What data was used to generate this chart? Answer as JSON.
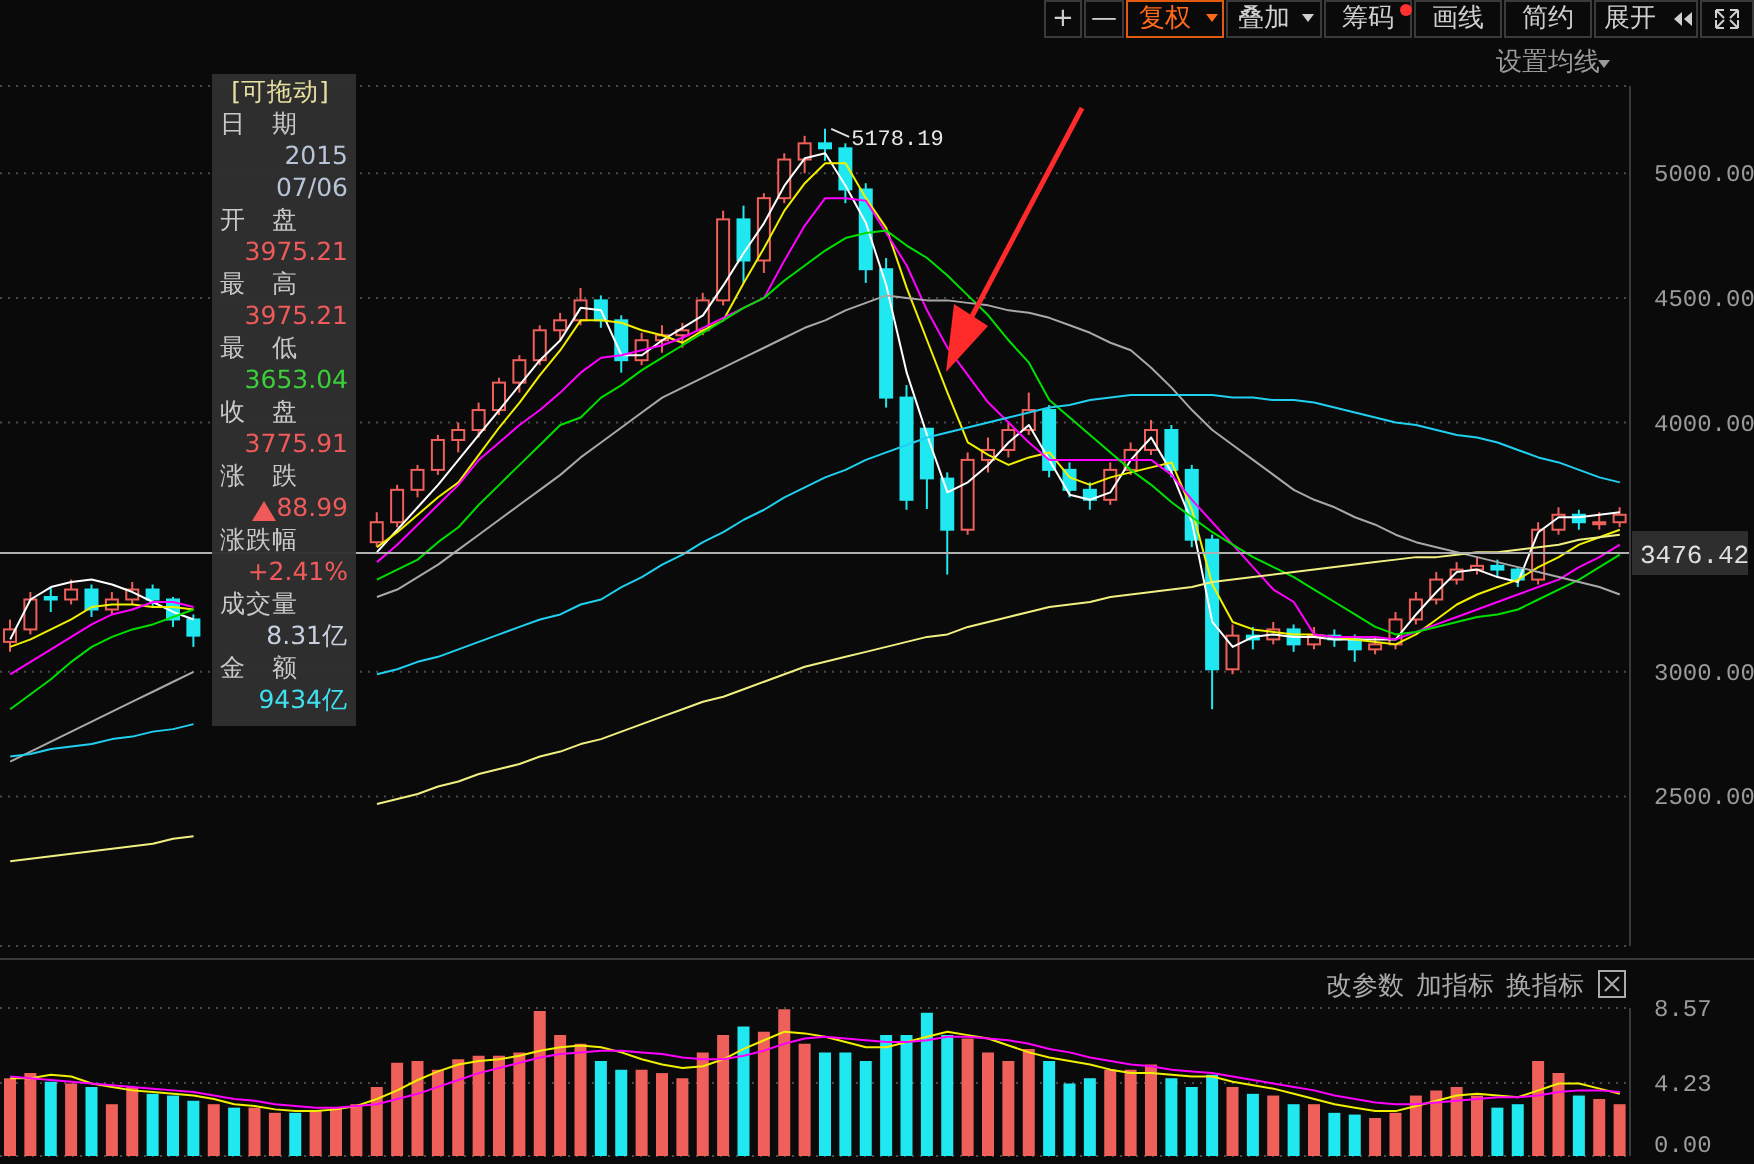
{
  "chart_data": [
    {
      "type": "candlestick",
      "categories": [
        null,
        null,
        null,
        null,
        null,
        null,
        null,
        null,
        null,
        null,
        null,
        null,
        null,
        null,
        null,
        null,
        null,
        null,
        null,
        null,
        null,
        null,
        null,
        null,
        null,
        null,
        null,
        null,
        null,
        null,
        null,
        null,
        null,
        null,
        null,
        null,
        null,
        null,
        null,
        null,
        null,
        null,
        null,
        null,
        null,
        null,
        null,
        null,
        null,
        null,
        null,
        null,
        null,
        null,
        null,
        null,
        null,
        null,
        null,
        null,
        null,
        null,
        null,
        null,
        null,
        null,
        null,
        null,
        null,
        null,
        null,
        null,
        null,
        null,
        null,
        null,
        null,
        null,
        null,
        null
      ],
      "ohlc": [
        [
          3120,
          3210,
          3080,
          3170
        ],
        [
          3170,
          3320,
          3150,
          3290
        ],
        [
          3300,
          3340,
          3240,
          3290
        ],
        [
          3290,
          3370,
          3270,
          3330
        ],
        [
          3330,
          3350,
          3220,
          3250
        ],
        [
          3250,
          3320,
          3230,
          3290
        ],
        [
          3290,
          3360,
          3270,
          3330
        ],
        [
          3330,
          3350,
          3260,
          3290
        ],
        [
          3290,
          3300,
          3180,
          3210
        ],
        [
          3210,
          3230,
          3100,
          3145
        ],
        null,
        null,
        null,
        null,
        null,
        null,
        null,
        null,
        [
          3520,
          3640,
          3500,
          3600
        ],
        [
          3600,
          3750,
          3580,
          3730
        ],
        [
          3730,
          3830,
          3700,
          3810
        ],
        [
          3810,
          3950,
          3790,
          3930
        ],
        [
          3930,
          4000,
          3880,
          3970
        ],
        [
          3970,
          4080,
          3940,
          4050
        ],
        [
          4050,
          4180,
          4030,
          4160
        ],
        [
          4160,
          4270,
          4120,
          4250
        ],
        [
          4250,
          4390,
          4230,
          4370
        ],
        [
          4370,
          4440,
          4330,
          4410
        ],
        [
          4410,
          4540,
          4390,
          4490
        ],
        [
          4490,
          4510,
          4380,
          4410
        ],
        [
          4410,
          4430,
          4200,
          4250
        ],
        [
          4250,
          4360,
          4230,
          4330
        ],
        [
          4330,
          4390,
          4280,
          4350
        ],
        [
          4350,
          4400,
          4300,
          4370
        ],
        [
          4370,
          4520,
          4350,
          4490
        ],
        [
          4490,
          4850,
          4470,
          4815
        ],
        [
          4815,
          4870,
          4560,
          4650
        ],
        [
          4650,
          4920,
          4600,
          4900
        ],
        [
          4900,
          5080,
          4880,
          5055
        ],
        [
          5055,
          5150,
          5000,
          5120
        ],
        [
          5120,
          5178.19,
          5050,
          5100
        ],
        [
          5100,
          5120,
          4880,
          4935
        ],
        [
          4935,
          4960,
          4560,
          4615
        ],
        [
          4615,
          4660,
          4060,
          4100
        ],
        [
          4100,
          4150,
          3650,
          3690
        ],
        [
          3975.21,
          3975.21,
          3653.04,
          3775.91
        ],
        [
          3775,
          3800,
          3390,
          3570
        ],
        [
          3570,
          3880,
          3550,
          3850
        ],
        [
          3850,
          3940,
          3800,
          3890
        ],
        [
          3890,
          4000,
          3860,
          3970
        ],
        [
          3970,
          4120,
          3950,
          4050
        ],
        [
          4050,
          4070,
          3780,
          3810
        ],
        [
          3810,
          3840,
          3700,
          3730
        ],
        [
          3730,
          3760,
          3650,
          3690
        ],
        [
          3690,
          3840,
          3670,
          3810
        ],
        [
          3810,
          3920,
          3790,
          3890
        ],
        [
          3890,
          4010,
          3870,
          3970
        ],
        [
          3970,
          3990,
          3780,
          3810
        ],
        [
          3810,
          3830,
          3500,
          3530
        ],
        [
          3530,
          3550,
          2850,
          3010
        ],
        [
          3010,
          3190,
          2990,
          3145
        ],
        [
          3145,
          3180,
          3090,
          3130
        ],
        [
          3130,
          3200,
          3110,
          3170
        ],
        [
          3170,
          3190,
          3080,
          3110
        ],
        [
          3110,
          3180,
          3090,
          3145
        ],
        [
          3145,
          3170,
          3100,
          3130
        ],
        [
          3130,
          3150,
          3040,
          3090
        ],
        [
          3090,
          3140,
          3070,
          3110
        ],
        [
          3110,
          3240,
          3090,
          3210
        ],
        [
          3210,
          3320,
          3190,
          3290
        ],
        [
          3290,
          3400,
          3270,
          3370
        ],
        [
          3370,
          3440,
          3350,
          3410
        ],
        [
          3410,
          3460,
          3390,
          3425
        ],
        [
          3425,
          3450,
          3380,
          3410
        ],
        [
          3410,
          3420,
          3340,
          3370
        ],
        [
          3370,
          3600,
          3350,
          3570
        ],
        [
          3570,
          3660,
          3550,
          3630
        ],
        [
          3630,
          3650,
          3570,
          3600
        ],
        [
          3600,
          3640,
          3570,
          3600
        ],
        [
          3600,
          3660,
          3580,
          3630
        ]
      ],
      "colors": [
        "#f0605a",
        "#f0605a",
        "#20e8f0",
        "#f0605a",
        "#20e8f0",
        "#f0605a",
        "#f0605a",
        "#20e8f0",
        "#20e8f0",
        "#20e8f0",
        null,
        null,
        null,
        null,
        null,
        null,
        null,
        null,
        "#f0605a",
        "#f0605a",
        "#f0605a",
        "#f0605a",
        "#f0605a",
        "#f0605a",
        "#f0605a",
        "#f0605a",
        "#f0605a",
        "#f0605a",
        "#f0605a",
        "#20e8f0",
        "#20e8f0",
        "#f0605a",
        "#f0605a",
        "#f0605a",
        "#f0605a",
        "#f0605a",
        "#20e8f0",
        "#f0605a",
        "#f0605a",
        "#f0605a",
        "#20e8f0",
        "#20e8f0",
        "#20e8f0",
        "#20e8f0",
        "#20e8f0",
        "#20e8f0",
        "#20e8f0",
        "#f0605a",
        "#f0605a",
        "#f0605a",
        "#f0605a",
        "#20e8f0",
        "#20e8f0",
        "#20e8f0",
        "#f0605a",
        "#f0605a",
        "#f0605a",
        "#20e8f0",
        "#20e8f0",
        "#20e8f0",
        "#f0605a",
        "#20e8f0",
        "#f0605a",
        "#20e8f0",
        "#f0605a",
        "#20e8f0",
        "#20e8f0",
        "#f0605a",
        "#f0605a",
        "#f0605a",
        "#f0605a",
        "#f0605a",
        "#f0605a",
        "#20e8f0",
        "#20e8f0",
        "#f0605a",
        "#f0605a",
        "#20e8f0",
        "#f0605a",
        "#f0605a"
      ],
      "series": [
        {
          "type": "line",
          "color": "#ffffff",
          "values": [
            3130,
            3290,
            3340,
            3360,
            3370,
            3350,
            3320,
            3280,
            3240,
            3210,
            null,
            null,
            null,
            null,
            null,
            null,
            null,
            null,
            3480,
            3570,
            3660,
            3750,
            3850,
            3950,
            4050,
            4150,
            4250,
            4330,
            4460,
            4450,
            4270,
            4270,
            4330,
            4380,
            4430,
            4550,
            4680,
            4800,
            4950,
            5060,
            5080,
            4950,
            4800,
            4550,
            4200,
            3950,
            3720,
            3760,
            3830,
            3920,
            3990,
            3850,
            3710,
            3690,
            3720,
            3850,
            3940,
            3800,
            3600,
            3200,
            3100,
            3140,
            3150,
            3140,
            3140,
            3130,
            3130,
            3130,
            3130,
            3230,
            3320,
            3400,
            3410,
            3380,
            3360,
            3560,
            3620,
            3620,
            3630,
            3640
          ]
        },
        {
          "type": "line",
          "color": "#f0f000",
          "values": [
            3100,
            3130,
            3170,
            3210,
            3260,
            3270,
            3270,
            3260,
            3260,
            3250,
            null,
            null,
            null,
            null,
            null,
            null,
            null,
            null,
            3500,
            3560,
            3630,
            3700,
            3760,
            3870,
            3980,
            4080,
            4190,
            4290,
            4410,
            4410,
            4400,
            4370,
            4350,
            4320,
            4370,
            4410,
            4560,
            4700,
            4850,
            4960,
            5040,
            5040,
            4900,
            4780,
            4540,
            4330,
            4120,
            3920,
            3870,
            3830,
            3860,
            3880,
            3780,
            3750,
            3780,
            3800,
            3820,
            3840,
            3650,
            3350,
            3200,
            3170,
            3160,
            3150,
            3150,
            3140,
            3130,
            3120,
            3110,
            3150,
            3210,
            3270,
            3310,
            3340,
            3370,
            3420,
            3460,
            3510,
            3540,
            3570
          ]
        },
        {
          "type": "line",
          "color": "#ff00ff",
          "values": [
            2990,
            3040,
            3090,
            3140,
            3190,
            3230,
            3250,
            3280,
            3280,
            3260,
            null,
            null,
            null,
            null,
            null,
            null,
            null,
            null,
            3440,
            3510,
            3590,
            3670,
            3750,
            3850,
            3920,
            3990,
            4050,
            4120,
            4200,
            4260,
            4270,
            4290,
            4310,
            4340,
            4380,
            4420,
            4460,
            4500,
            4650,
            4790,
            4900,
            4900,
            4890,
            4760,
            4630,
            4450,
            4300,
            4190,
            4080,
            4000,
            3920,
            3850,
            3850,
            3850,
            3850,
            3850,
            3850,
            3790,
            3690,
            3600,
            3510,
            3420,
            3330,
            3280,
            3150,
            3140,
            3140,
            3140,
            3130,
            3160,
            3190,
            3220,
            3250,
            3280,
            3310,
            3340,
            3370,
            3420,
            3460,
            3510
          ]
        },
        {
          "type": "line",
          "color": "#00e000",
          "values": [
            2850,
            2910,
            2970,
            3040,
            3100,
            3140,
            3170,
            3190,
            3220,
            3250,
            null,
            null,
            null,
            null,
            null,
            null,
            null,
            null,
            3370,
            3410,
            3450,
            3520,
            3580,
            3670,
            3750,
            3830,
            3910,
            3990,
            4020,
            4100,
            4150,
            4210,
            4260,
            4310,
            4360,
            4410,
            4460,
            4500,
            4570,
            4630,
            4690,
            4740,
            4760,
            4770,
            4710,
            4660,
            4590,
            4510,
            4430,
            4330,
            4240,
            4090,
            4020,
            3950,
            3880,
            3810,
            3750,
            3680,
            3620,
            3560,
            3510,
            3460,
            3420,
            3380,
            3330,
            3280,
            3230,
            3180,
            3150,
            3160,
            3180,
            3200,
            3220,
            3230,
            3250,
            3290,
            3330,
            3370,
            3420,
            3470
          ]
        },
        {
          "type": "line",
          "color": "#a8a8a8",
          "values": [
            2640,
            2680,
            2720,
            2760,
            2800,
            2840,
            2880,
            2920,
            2960,
            3000,
            null,
            null,
            null,
            null,
            null,
            null,
            null,
            null,
            3300,
            3330,
            3380,
            3430,
            3490,
            3550,
            3610,
            3670,
            3730,
            3790,
            3860,
            3920,
            3980,
            4040,
            4100,
            4140,
            4180,
            4220,
            4260,
            4300,
            4340,
            4380,
            4410,
            4450,
            4480,
            4510,
            4500,
            4490,
            4490,
            4480,
            4470,
            4450,
            4440,
            4420,
            4390,
            4360,
            4320,
            4290,
            4220,
            4140,
            4050,
            3970,
            3910,
            3850,
            3790,
            3730,
            3690,
            3660,
            3620,
            3590,
            3550,
            3520,
            3500,
            3480,
            3460,
            3440,
            3420,
            3400,
            3380,
            3360,
            3340,
            3310
          ]
        },
        {
          "type": "line",
          "color": "#20d0f0",
          "values": [
            2660,
            2670,
            2690,
            2700,
            2710,
            2730,
            2740,
            2760,
            2770,
            2790,
            null,
            null,
            null,
            null,
            null,
            null,
            null,
            null,
            2990,
            3010,
            3040,
            3060,
            3090,
            3120,
            3150,
            3180,
            3210,
            3230,
            3270,
            3290,
            3340,
            3380,
            3430,
            3470,
            3520,
            3560,
            3610,
            3650,
            3700,
            3740,
            3780,
            3810,
            3850,
            3880,
            3910,
            3940,
            3960,
            3980,
            4000,
            4020,
            4040,
            4060,
            4070,
            4090,
            4100,
            4110,
            4110,
            4110,
            4110,
            4110,
            4100,
            4100,
            4090,
            4090,
            4080,
            4060,
            4040,
            4020,
            4000,
            3990,
            3970,
            3950,
            3940,
            3920,
            3890,
            3860,
            3840,
            3810,
            3780,
            3760
          ]
        },
        {
          "type": "line",
          "color": "#f0f080",
          "values": [
            2240,
            2250,
            2260,
            2270,
            2280,
            2290,
            2300,
            2310,
            2330,
            2340,
            null,
            null,
            null,
            null,
            null,
            null,
            null,
            null,
            2470,
            2490,
            2510,
            2540,
            2560,
            2590,
            2610,
            2630,
            2660,
            2680,
            2710,
            2730,
            2760,
            2790,
            2820,
            2850,
            2880,
            2900,
            2930,
            2960,
            2990,
            3020,
            3040,
            3060,
            3080,
            3100,
            3120,
            3140,
            3150,
            3180,
            3200,
            3220,
            3240,
            3260,
            3270,
            3280,
            3300,
            3310,
            3320,
            3330,
            3340,
            3360,
            3370,
            3380,
            3390,
            3400,
            3410,
            3420,
            3430,
            3440,
            3450,
            3460,
            3460,
            3470,
            3480,
            3480,
            3490,
            3500,
            3510,
            3530,
            3540,
            3550
          ]
        }
      ],
      "ylim": [
        1900,
        5350
      ],
      "yticks": [
        {
          "value": 2500,
          "label": "2500.00"
        },
        {
          "value": 3000,
          "label": "3000.00"
        },
        {
          "value": 4000,
          "label": "4000.00"
        },
        {
          "value": 4500,
          "label": "4500.00"
        },
        {
          "value": 5000,
          "label": "5000.00"
        }
      ],
      "grid": "y",
      "tick_labels": "y",
      "ref_lines": [
        {
          "axis": "y",
          "value": 3476.42,
          "label": "3476.42",
          "color": "#b0b0b0"
        }
      ],
      "annotations": [
        "+",
        "—",
        "复权",
        "叠加",
        "筹码",
        "画线",
        "简约",
        "展开",
        "设置均线",
        "[可拖动]",
        "日　期",
        "2015",
        "07/06",
        "开　盘",
        "3975.21",
        "最　高",
        "3975.21",
        "最　低",
        "3653.04",
        "收　盘",
        "3775.91",
        "涨　跌",
        "88.99",
        "涨跌幅",
        "+2.41%",
        "成交量",
        "8.31亿",
        "金　额",
        "9434亿",
        "5178.19"
      ]
    },
    {
      "type": "bar",
      "categories": [
        null,
        null,
        null,
        null,
        null,
        null,
        null,
        null,
        null,
        null,
        null,
        null,
        null,
        null,
        null,
        null,
        null,
        null,
        null,
        null,
        null,
        null,
        null,
        null,
        null,
        null,
        null,
        null,
        null,
        null,
        null,
        null,
        null,
        null,
        null,
        null,
        null,
        null,
        null,
        null,
        null,
        null,
        null,
        null,
        null,
        null,
        null,
        null,
        null,
        null,
        null,
        null,
        null,
        null,
        null,
        null,
        null,
        null,
        null,
        null,
        null,
        null,
        null,
        null,
        null,
        null,
        null,
        null,
        null,
        null,
        null,
        null,
        null,
        null,
        null,
        null,
        null,
        null,
        null,
        null
      ],
      "series": [
        {
          "type": "bar",
          "colors": [
            "#f0605a",
            "#f0605a",
            "#20e8f0",
            "#f0605a",
            "#20e8f0",
            "#f0605a",
            "#f0605a",
            "#20e8f0",
            "#20e8f0",
            "#20e8f0",
            "#f0605a",
            "#20e8f0",
            "#f0605a",
            "#f0605a",
            "#20e8f0",
            "#f0605a",
            "#f0605a",
            "#f0605a",
            "#f0605a",
            "#f0605a",
            "#f0605a",
            "#f0605a",
            "#f0605a",
            "#f0605a",
            "#f0605a",
            "#f0605a",
            "#f0605a",
            "#f0605a",
            "#f0605a",
            "#20e8f0",
            "#20e8f0",
            "#f0605a",
            "#f0605a",
            "#f0605a",
            "#f0605a",
            "#f0605a",
            "#20e8f0",
            "#f0605a",
            "#f0605a",
            "#f0605a",
            "#20e8f0",
            "#20e8f0",
            "#20e8f0",
            "#20e8f0",
            "#20e8f0",
            "#20e8f0",
            "#20e8f0",
            "#f0605a",
            "#f0605a",
            "#f0605a",
            "#f0605a",
            "#20e8f0",
            "#20e8f0",
            "#20e8f0",
            "#f0605a",
            "#f0605a",
            "#f0605a",
            "#20e8f0",
            "#20e8f0",
            "#20e8f0",
            "#f0605a",
            "#20e8f0",
            "#f0605a",
            "#20e8f0",
            "#f0605a",
            "#20e8f0",
            "#20e8f0",
            "#f0605a",
            "#f0605a",
            "#f0605a",
            "#f0605a",
            "#f0605a",
            "#f0605a",
            "#20e8f0",
            "#20e8f0",
            "#f0605a",
            "#f0605a",
            "#20e8f0",
            "#f0605a",
            "#f0605a"
          ],
          "values": [
            4.5,
            4.8,
            4.3,
            4.2,
            4.0,
            3.0,
            4.0,
            3.6,
            3.5,
            3.2,
            3.0,
            2.8,
            2.8,
            2.5,
            2.5,
            2.6,
            2.8,
            3.0,
            4.0,
            5.4,
            5.5,
            5.0,
            5.6,
            5.8,
            5.8,
            6.0,
            8.4,
            7.0,
            6.5,
            5.5,
            5.0,
            5.0,
            4.8,
            4.5,
            6.0,
            7.0,
            7.5,
            7.2,
            8.5,
            6.5,
            6.0,
            6.0,
            5.5,
            7.0,
            7.0,
            8.3,
            7.0,
            6.8,
            6.0,
            5.5,
            6.2,
            5.5,
            4.2,
            4.5,
            5.0,
            5.0,
            5.3,
            4.5,
            4.0,
            4.7,
            4.0,
            3.6,
            3.5,
            3.0,
            3.0,
            2.5,
            2.4,
            2.2,
            2.5,
            3.5,
            3.8,
            4.0,
            3.5,
            2.8,
            3.0,
            5.5,
            4.8,
            3.5,
            3.3,
            3.0
          ]
        },
        {
          "type": "line",
          "color": "#f0f000",
          "values": [
            4.5,
            4.5,
            4.7,
            4.6,
            4.2,
            4.0,
            3.8,
            3.7,
            3.6,
            3.5,
            3.3,
            3.0,
            2.9,
            2.7,
            2.6,
            2.6,
            2.7,
            2.9,
            3.3,
            3.8,
            4.4,
            4.9,
            5.3,
            5.5,
            5.6,
            5.8,
            6.1,
            6.3,
            6.4,
            6.3,
            6.0,
            5.6,
            5.3,
            5.1,
            5.2,
            5.6,
            6.2,
            6.7,
            7.2,
            7.1,
            6.9,
            6.6,
            6.3,
            6.3,
            6.6,
            6.9,
            7.2,
            7.0,
            6.8,
            6.4,
            6.0,
            5.7,
            5.5,
            5.3,
            5.0,
            4.8,
            4.8,
            4.7,
            4.6,
            4.6,
            4.3,
            4.1,
            3.9,
            3.6,
            3.3,
            3.0,
            2.8,
            2.6,
            2.6,
            2.9,
            3.2,
            3.5,
            3.6,
            3.5,
            3.4,
            3.8,
            4.2,
            4.2,
            3.9,
            3.6
          ]
        },
        {
          "type": "line",
          "color": "#ff00ff",
          "values": [
            4.6,
            4.5,
            4.4,
            4.3,
            4.2,
            4.1,
            4.0,
            3.9,
            3.8,
            3.7,
            3.5,
            3.3,
            3.2,
            3.0,
            2.9,
            2.8,
            2.8,
            2.9,
            3.0,
            3.3,
            3.6,
            4.0,
            4.4,
            4.8,
            5.1,
            5.4,
            5.7,
            5.9,
            6.0,
            6.1,
            6.1,
            6.0,
            5.9,
            5.7,
            5.6,
            5.6,
            5.8,
            6.1,
            6.5,
            6.8,
            6.9,
            6.8,
            6.7,
            6.6,
            6.6,
            6.7,
            6.9,
            6.9,
            6.8,
            6.7,
            6.5,
            6.2,
            6.0,
            5.7,
            5.5,
            5.3,
            5.2,
            5.0,
            4.9,
            4.8,
            4.6,
            4.4,
            4.2,
            4.0,
            3.8,
            3.5,
            3.3,
            3.1,
            3.0,
            3.0,
            3.1,
            3.2,
            3.3,
            3.4,
            3.4,
            3.5,
            3.7,
            3.8,
            3.8,
            3.7
          ]
        }
      ],
      "ylim": [
        0,
        8.57
      ],
      "yticks": [
        {
          "value": 0,
          "label": "0.00"
        },
        {
          "value": 4.23,
          "label": "4.23"
        },
        {
          "value": 8.57,
          "label": "8.57"
        }
      ],
      "grid": "y",
      "tick_labels": "y",
      "annotations": [
        "改参数",
        "加指标",
        "换指标"
      ]
    }
  ]
}
